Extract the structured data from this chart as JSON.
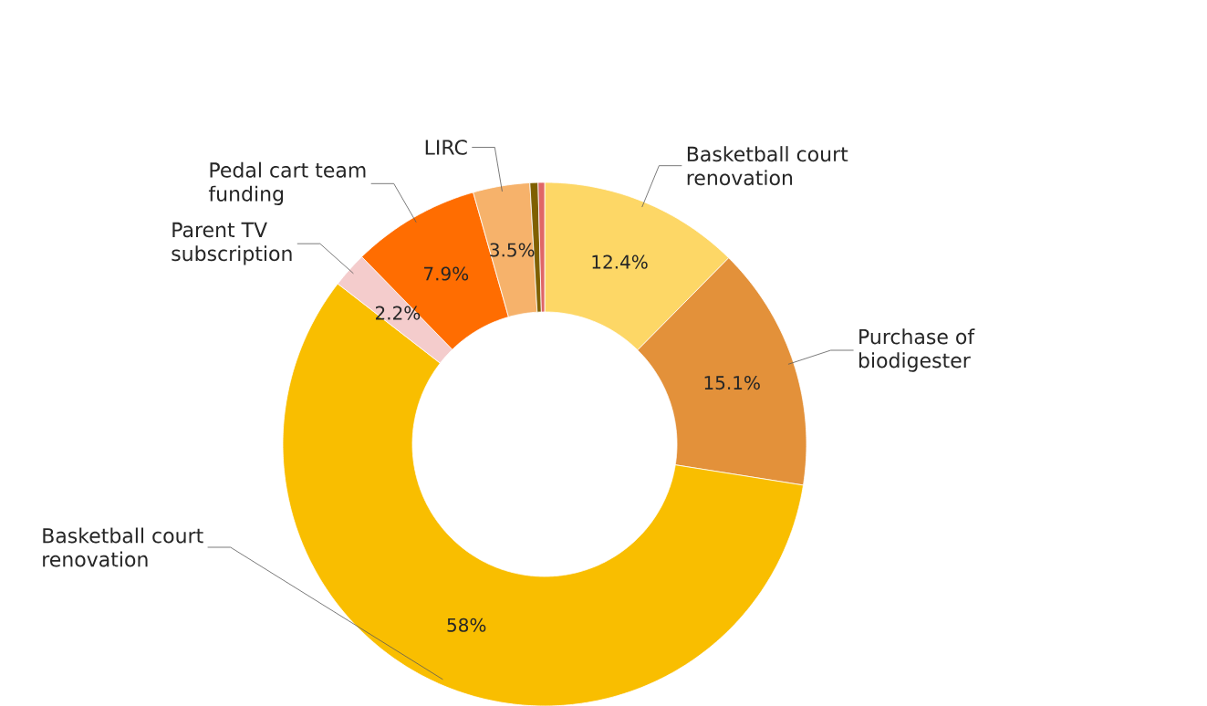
{
  "chart_data": {
    "type": "donut",
    "categories": [
      "Basketball court renovation",
      "Purchase of biodigester",
      "Basketball court renovation",
      "Parent TV subscription",
      "Pedal cart team funding",
      "LIRC",
      null,
      null
    ],
    "values": [
      12.4,
      15.1,
      58,
      2.2,
      7.9,
      3.5,
      0.5,
      0.4
    ],
    "colors": [
      "#fdd766",
      "#e3913a",
      "#f9be00",
      "#f4cccc",
      "#ff6d01",
      "#f6b26b",
      "#7f6000",
      "#e06666"
    ],
    "value_labels": [
      "12.4%",
      "15.1%",
      "58%",
      "2.2%",
      "7.9%",
      "3.5%",
      null,
      null
    ]
  }
}
